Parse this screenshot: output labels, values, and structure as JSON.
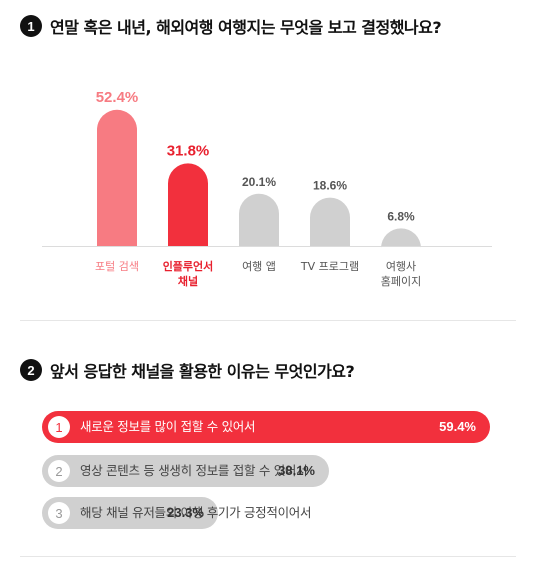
{
  "q1": {
    "number": "1",
    "question": "연말 혹은 내년, 해외여행 여행지는 무엇을 보고 결정했나요?"
  },
  "q2": {
    "number": "2",
    "question": "앞서 응답한 채널을 활용한 이유는 무엇인가요?"
  },
  "colors": {
    "pink": "#f77b82",
    "red": "#f2303d",
    "gray": "#d0d0d0",
    "gray_text": "#555555",
    "dark": "#111111"
  },
  "chart_data": [
    {
      "type": "bar",
      "categories": [
        "포털 검색",
        "인플루언서\n채널",
        "여행 앱",
        "TV 프로그램",
        "여행사\n홈페이지"
      ],
      "values": [
        52.4,
        31.8,
        20.1,
        18.6,
        6.8
      ],
      "value_labels": [
        "52.4%",
        "31.8%",
        "20.1%",
        "18.6%",
        "6.8%"
      ],
      "bar_colors": [
        "#f77b82",
        "#f2303d",
        "#d0d0d0",
        "#d0d0d0",
        "#d0d0d0"
      ],
      "label_colors": [
        "#f77b82",
        "#e8202e",
        "#555555",
        "#555555",
        "#555555"
      ],
      "ylim": [
        0,
        60
      ],
      "grid": false
    },
    {
      "type": "bar",
      "orientation": "horizontal",
      "ranks": [
        "1",
        "2",
        "3"
      ],
      "categories": [
        "새로운 정보를 많이 접할 수 있어서",
        "영상 콘텐츠 등 생생히 정보를 접할 수 있어서",
        "해당 채널 유저들의 여행 후기가 긍정적이어서"
      ],
      "values": [
        59.4,
        38.1,
        23.3
      ],
      "value_labels": [
        "59.4%",
        "38.1%",
        "23.3%"
      ],
      "bar_colors": [
        "#f2303d",
        "#d0d0d0",
        "#d0d0d0"
      ]
    }
  ]
}
